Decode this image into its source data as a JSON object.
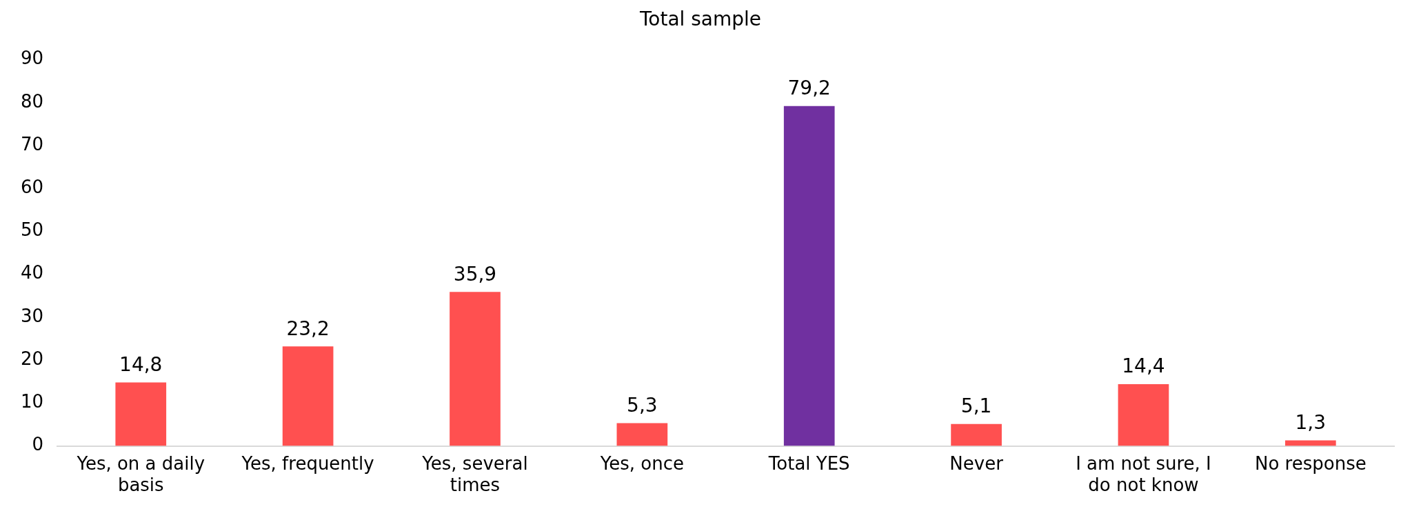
{
  "chart_data": {
    "type": "bar",
    "title": "Total sample",
    "categories": [
      "Yes, on a daily basis",
      "Yes, frequently",
      "Yes, several times",
      "Yes, once",
      "Total YES",
      "Never",
      "I am not sure, I do not know",
      "No response"
    ],
    "values": [
      14.8,
      23.2,
      35.9,
      5.3,
      79.2,
      5.1,
      14.4,
      1.3
    ],
    "value_labels": [
      "14,8",
      "23,2",
      "35,9",
      "5,3",
      "79,2",
      "5,1",
      "14,4",
      "1,3"
    ],
    "colors": [
      "#ff5050",
      "#ff5050",
      "#ff5050",
      "#ff5050",
      "#7030a0",
      "#ff5050",
      "#ff5050",
      "#ff5050"
    ],
    "ylim": [
      0,
      90
    ],
    "yticks": [
      0,
      10,
      20,
      30,
      40,
      50,
      60,
      70,
      80,
      90
    ],
    "grid": false,
    "legend": false
  }
}
